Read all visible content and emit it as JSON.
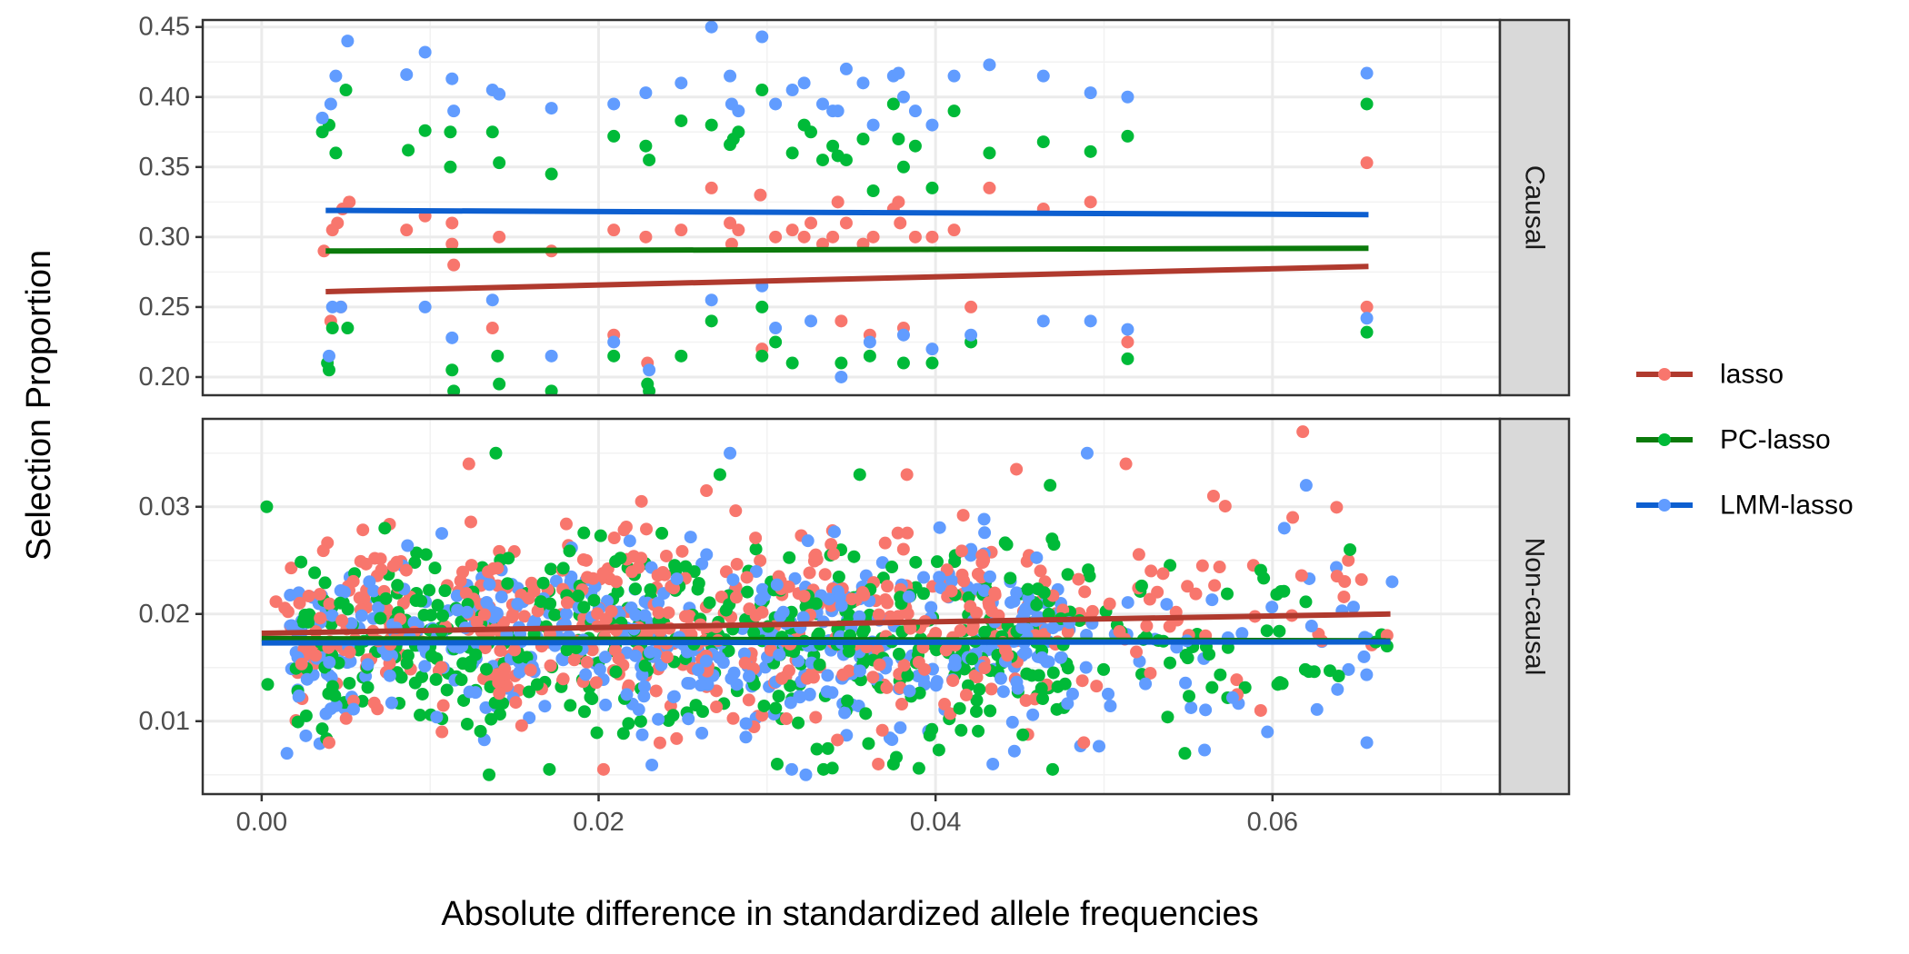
{
  "chart_data": {
    "type": "scatter",
    "xlabel": "Absolute difference in standardized allele frequencies",
    "ylabel": "Selection Proportion",
    "x_ticks": [
      "0.00",
      "0.02",
      "0.04",
      "0.06"
    ],
    "x_tick_values": [
      0.0,
      0.02,
      0.04,
      0.06
    ],
    "xlim": [
      -0.0035,
      0.0735
    ],
    "grid": true,
    "legend_position": "right",
    "series": [
      {
        "name": "lasso",
        "point_color": "#F8766D",
        "line_color": "#B03A2E"
      },
      {
        "name": "PC-lasso",
        "point_color": "#00BA38",
        "line_color": "#0B7A0B"
      },
      {
        "name": "LMM-lasso",
        "point_color": "#619CFF",
        "line_color": "#0D5FD0"
      }
    ],
    "panels": [
      {
        "strip": "Causal",
        "ylim": [
          0.187,
          0.455
        ],
        "y_ticks": [
          "0.20",
          "0.25",
          "0.30",
          "0.35",
          "0.40",
          "0.45"
        ],
        "y_tick_values": [
          0.2,
          0.25,
          0.3,
          0.35,
          0.4,
          0.45
        ],
        "trend_lines": [
          {
            "series": "lasso",
            "x": [
              0.0038,
              0.0657
            ],
            "y": [
              0.261,
              0.279
            ]
          },
          {
            "series": "PC-lasso",
            "x": [
              0.0038,
              0.0657
            ],
            "y": [
              0.29,
              0.292
            ]
          },
          {
            "series": "LMM-lasso",
            "x": [
              0.0038,
              0.0657
            ],
            "y": [
              0.319,
              0.316
            ]
          }
        ],
        "points": {
          "lasso": [
            [
              0.0037,
              0.29
            ],
            [
              0.0042,
              0.305
            ],
            [
              0.0045,
              0.31
            ],
            [
              0.0048,
              0.32
            ],
            [
              0.0052,
              0.325
            ],
            [
              0.0041,
              0.24
            ],
            [
              0.0047,
              0.25
            ],
            [
              0.0086,
              0.305
            ],
            [
              0.0097,
              0.315
            ],
            [
              0.0113,
              0.295
            ],
            [
              0.0114,
              0.28
            ],
            [
              0.0113,
              0.31
            ],
            [
              0.0137,
              0.235
            ],
            [
              0.0141,
              0.3
            ],
            [
              0.0172,
              0.29
            ],
            [
              0.0209,
              0.305
            ],
            [
              0.0209,
              0.23
            ],
            [
              0.0228,
              0.3
            ],
            [
              0.0229,
              0.21
            ],
            [
              0.0249,
              0.305
            ],
            [
              0.0267,
              0.335
            ],
            [
              0.0278,
              0.31
            ],
            [
              0.0279,
              0.295
            ],
            [
              0.0283,
              0.305
            ],
            [
              0.0296,
              0.33
            ],
            [
              0.0305,
              0.3
            ],
            [
              0.0315,
              0.305
            ],
            [
              0.0322,
              0.3
            ],
            [
              0.0326,
              0.31
            ],
            [
              0.0333,
              0.295
            ],
            [
              0.0339,
              0.3
            ],
            [
              0.0342,
              0.325
            ],
            [
              0.0347,
              0.31
            ],
            [
              0.0357,
              0.295
            ],
            [
              0.0363,
              0.3
            ],
            [
              0.0375,
              0.32
            ],
            [
              0.0378,
              0.325
            ],
            [
              0.0379,
              0.31
            ],
            [
              0.0388,
              0.3
            ],
            [
              0.0398,
              0.3
            ],
            [
              0.0411,
              0.305
            ],
            [
              0.0421,
              0.25
            ],
            [
              0.0432,
              0.335
            ],
            [
              0.0464,
              0.32
            ],
            [
              0.0492,
              0.325
            ],
            [
              0.0514,
              0.225
            ],
            [
              0.0656,
              0.353
            ],
            [
              0.0656,
              0.25
            ],
            [
              0.0344,
              0.24
            ],
            [
              0.0361,
              0.23
            ],
            [
              0.0381,
              0.235
            ],
            [
              0.0297,
              0.22
            ]
          ],
          "PC-lasso": [
            [
              0.0036,
              0.375
            ],
            [
              0.004,
              0.38
            ],
            [
              0.0044,
              0.36
            ],
            [
              0.005,
              0.405
            ],
            [
              0.0042,
              0.235
            ],
            [
              0.0051,
              0.235
            ],
            [
              0.0039,
              0.21
            ],
            [
              0.004,
              0.205
            ],
            [
              0.0087,
              0.362
            ],
            [
              0.0097,
              0.376
            ],
            [
              0.0112,
              0.375
            ],
            [
              0.0112,
              0.35
            ],
            [
              0.0113,
              0.205
            ],
            [
              0.0114,
              0.19
            ],
            [
              0.0137,
              0.375
            ],
            [
              0.0141,
              0.353
            ],
            [
              0.014,
              0.215
            ],
            [
              0.0141,
              0.195
            ],
            [
              0.0172,
              0.345
            ],
            [
              0.0172,
              0.19
            ],
            [
              0.0209,
              0.372
            ],
            [
              0.0209,
              0.215
            ],
            [
              0.0228,
              0.365
            ],
            [
              0.023,
              0.355
            ],
            [
              0.0229,
              0.195
            ],
            [
              0.023,
              0.19
            ],
            [
              0.0249,
              0.383
            ],
            [
              0.0249,
              0.215
            ],
            [
              0.0267,
              0.38
            ],
            [
              0.0267,
              0.24
            ],
            [
              0.0278,
              0.366
            ],
            [
              0.028,
              0.37
            ],
            [
              0.0283,
              0.375
            ],
            [
              0.0297,
              0.405
            ],
            [
              0.0297,
              0.25
            ],
            [
              0.0297,
              0.215
            ],
            [
              0.0305,
              0.225
            ],
            [
              0.0315,
              0.36
            ],
            [
              0.0315,
              0.21
            ],
            [
              0.0322,
              0.38
            ],
            [
              0.0326,
              0.375
            ],
            [
              0.0333,
              0.355
            ],
            [
              0.0339,
              0.365
            ],
            [
              0.0342,
              0.358
            ],
            [
              0.0347,
              0.355
            ],
            [
              0.0357,
              0.37
            ],
            [
              0.0363,
              0.333
            ],
            [
              0.0375,
              0.395
            ],
            [
              0.0378,
              0.37
            ],
            [
              0.0381,
              0.35
            ],
            [
              0.0388,
              0.365
            ],
            [
              0.0398,
              0.335
            ],
            [
              0.0411,
              0.39
            ],
            [
              0.0421,
              0.225
            ],
            [
              0.0432,
              0.36
            ],
            [
              0.0464,
              0.368
            ],
            [
              0.0492,
              0.361
            ],
            [
              0.0514,
              0.372
            ],
            [
              0.0514,
              0.213
            ],
            [
              0.0656,
              0.395
            ],
            [
              0.0656,
              0.232
            ],
            [
              0.0344,
              0.21
            ],
            [
              0.0361,
              0.215
            ],
            [
              0.0381,
              0.21
            ],
            [
              0.0398,
              0.21
            ]
          ],
          "LMM-lasso": [
            [
              0.0036,
              0.385
            ],
            [
              0.0041,
              0.395
            ],
            [
              0.0044,
              0.415
            ],
            [
              0.0051,
              0.44
            ],
            [
              0.004,
              0.215
            ],
            [
              0.0042,
              0.25
            ],
            [
              0.0047,
              0.25
            ],
            [
              0.0086,
              0.416
            ],
            [
              0.0097,
              0.432
            ],
            [
              0.0097,
              0.25
            ],
            [
              0.0113,
              0.413
            ],
            [
              0.0114,
              0.39
            ],
            [
              0.0113,
              0.228
            ],
            [
              0.0137,
              0.405
            ],
            [
              0.0141,
              0.402
            ],
            [
              0.0137,
              0.255
            ],
            [
              0.0172,
              0.392
            ],
            [
              0.0172,
              0.215
            ],
            [
              0.0209,
              0.395
            ],
            [
              0.0209,
              0.225
            ],
            [
              0.0228,
              0.403
            ],
            [
              0.023,
              0.205
            ],
            [
              0.0249,
              0.41
            ],
            [
              0.0267,
              0.45
            ],
            [
              0.0267,
              0.255
            ],
            [
              0.0278,
              0.415
            ],
            [
              0.0279,
              0.395
            ],
            [
              0.0283,
              0.39
            ],
            [
              0.0297,
              0.443
            ],
            [
              0.0297,
              0.265
            ],
            [
              0.0305,
              0.395
            ],
            [
              0.0315,
              0.405
            ],
            [
              0.0322,
              0.41
            ],
            [
              0.0326,
              0.24
            ],
            [
              0.0333,
              0.395
            ],
            [
              0.0339,
              0.39
            ],
            [
              0.0342,
              0.39
            ],
            [
              0.0347,
              0.42
            ],
            [
              0.0357,
              0.41
            ],
            [
              0.0363,
              0.38
            ],
            [
              0.0375,
              0.415
            ],
            [
              0.0378,
              0.417
            ],
            [
              0.0381,
              0.4
            ],
            [
              0.0388,
              0.39
            ],
            [
              0.0398,
              0.38
            ],
            [
              0.0411,
              0.415
            ],
            [
              0.0421,
              0.23
            ],
            [
              0.0432,
              0.423
            ],
            [
              0.0464,
              0.415
            ],
            [
              0.0464,
              0.24
            ],
            [
              0.0492,
              0.403
            ],
            [
              0.0492,
              0.24
            ],
            [
              0.0514,
              0.4
            ],
            [
              0.0514,
              0.234
            ],
            [
              0.0656,
              0.417
            ],
            [
              0.0656,
              0.242
            ],
            [
              0.0344,
              0.2
            ],
            [
              0.0361,
              0.225
            ],
            [
              0.0381,
              0.23
            ],
            [
              0.0398,
              0.22
            ],
            [
              0.0305,
              0.235
            ]
          ]
        }
      },
      {
        "strip": "Non-causal",
        "ylim": [
          0.0032,
          0.0382
        ],
        "y_ticks": [
          "0.01",
          "0.02",
          "0.03"
        ],
        "y_tick_values": [
          0.01,
          0.02,
          0.03
        ],
        "trend_lines": [
          {
            "series": "lasso",
            "x": [
              0.0,
              0.067
            ],
            "y": [
              0.0182,
              0.02
            ]
          },
          {
            "series": "PC-lasso",
            "x": [
              0.0,
              0.067
            ],
            "y": [
              0.0177,
              0.0175
            ]
          },
          {
            "series": "LMM-lasso",
            "x": [
              0.0,
              0.067
            ],
            "y": [
              0.0173,
              0.0174
            ]
          }
        ],
        "points": {
          "lasso": [
            [
              0.0123,
              0.034
            ],
            [
              0.0264,
              0.0315
            ],
            [
              0.0383,
              0.033
            ],
            [
              0.0448,
              0.0335
            ],
            [
              0.0618,
              0.037
            ],
            [
              0.0513,
              0.034
            ],
            [
              0.0565,
              0.031
            ],
            [
              0.0612,
              0.029
            ],
            [
              0.0645,
              0.025
            ],
            [
              0.0668,
              0.018
            ],
            [
              0.004,
              0.008
            ],
            [
              0.0107,
              0.009
            ],
            [
              0.0366,
              0.006
            ],
            [
              0.0488,
              0.008
            ],
            [
              0.0593,
              0.011
            ]
          ],
          "PC-lasso": [
            [
              0.0139,
              0.035
            ],
            [
              0.0003,
              0.03
            ],
            [
              0.0272,
              0.033
            ],
            [
              0.0355,
              0.033
            ],
            [
              0.0468,
              0.032
            ],
            [
              0.0135,
              0.005
            ],
            [
              0.0306,
              0.006
            ],
            [
              0.0375,
              0.006
            ],
            [
              0.0548,
              0.007
            ],
            [
              0.0646,
              0.026
            ],
            [
              0.0668,
              0.017
            ]
          ],
          "LMM-lasso": [
            [
              0.0278,
              0.035
            ],
            [
              0.049,
              0.035
            ],
            [
              0.062,
              0.032
            ],
            [
              0.0607,
              0.028
            ],
            [
              0.0323,
              0.005
            ],
            [
              0.0671,
              0.023
            ],
            [
              0.0656,
              0.008
            ],
            [
              0.0597,
              0.009
            ],
            [
              0.0434,
              0.006
            ],
            [
              0.0015,
              0.007
            ]
          ]
        }
      }
    ]
  }
}
